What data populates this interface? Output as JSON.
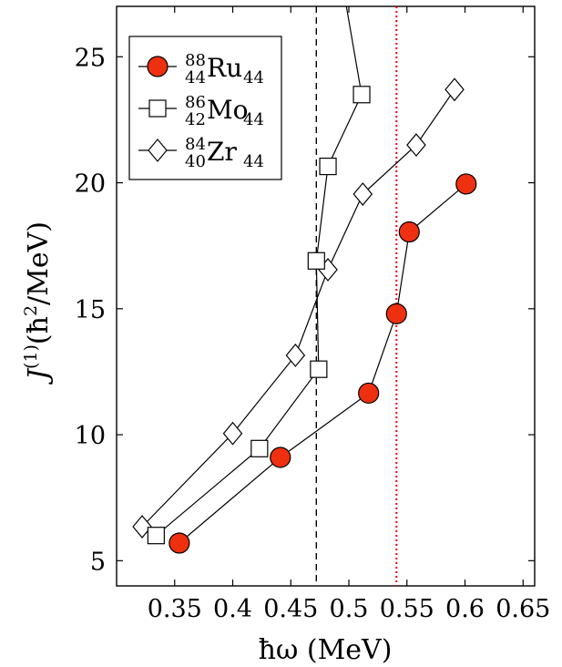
{
  "chart_data": {
    "type": "line",
    "xlabel": "ħω (MeV)",
    "ylabel": "J(1)(ħ2/MeV)",
    "ylabel_parts": {
      "main": "J",
      "sup1": "(1)",
      "open": "(ħ",
      "sup2": "2",
      "rest": "/MeV)"
    },
    "xlim": [
      0.3,
      0.66
    ],
    "ylim": [
      4,
      27
    ],
    "xticks": [
      0.35,
      0.4,
      0.45,
      0.5,
      0.55,
      0.6,
      0.65
    ],
    "xtick_labels": [
      "0.35",
      "0.4",
      "0.45",
      "0.5",
      "0.55",
      "0.6",
      "0.65"
    ],
    "yticks": [
      5,
      10,
      15,
      20,
      25
    ],
    "ytick_labels": [
      "5",
      "10",
      "15",
      "20",
      "25"
    ],
    "grid": false,
    "legend_position": "top-left",
    "vertical_lines": [
      {
        "x": 0.472,
        "style": "dashed",
        "color": "#000000"
      },
      {
        "x": 0.541,
        "style": "dotted",
        "color": "#e8000b"
      }
    ],
    "series": [
      {
        "label": {
          "mass": "88",
          "z": "44",
          "symbol": "Ru",
          "n": "44"
        },
        "marker": "circle",
        "color": "#ee3010",
        "x": [
          0.354,
          0.441,
          0.517,
          0.541,
          0.552,
          0.601
        ],
        "y": [
          5.7,
          9.1,
          11.65,
          14.8,
          18.05,
          19.95
        ]
      },
      {
        "label": {
          "mass": "86",
          "z": "42",
          "symbol": "Mo",
          "n": "44"
        },
        "marker": "square",
        "color": "#000000",
        "x": [
          0.334,
          0.423,
          0.474,
          0.472,
          0.482,
          0.511,
          0.496
        ],
        "y": [
          6.0,
          9.45,
          12.6,
          16.9,
          20.65,
          23.5,
          27.5
        ]
      },
      {
        "label": {
          "mass": "84",
          "z": "40",
          "symbol": "Zr",
          "n": "44"
        },
        "marker": "diamond",
        "color": "#000000",
        "x": [
          0.322,
          0.4,
          0.454,
          0.482,
          0.512,
          0.558,
          0.591
        ],
        "y": [
          6.35,
          10.05,
          13.15,
          16.55,
          19.55,
          21.5,
          23.7
        ]
      }
    ]
  }
}
